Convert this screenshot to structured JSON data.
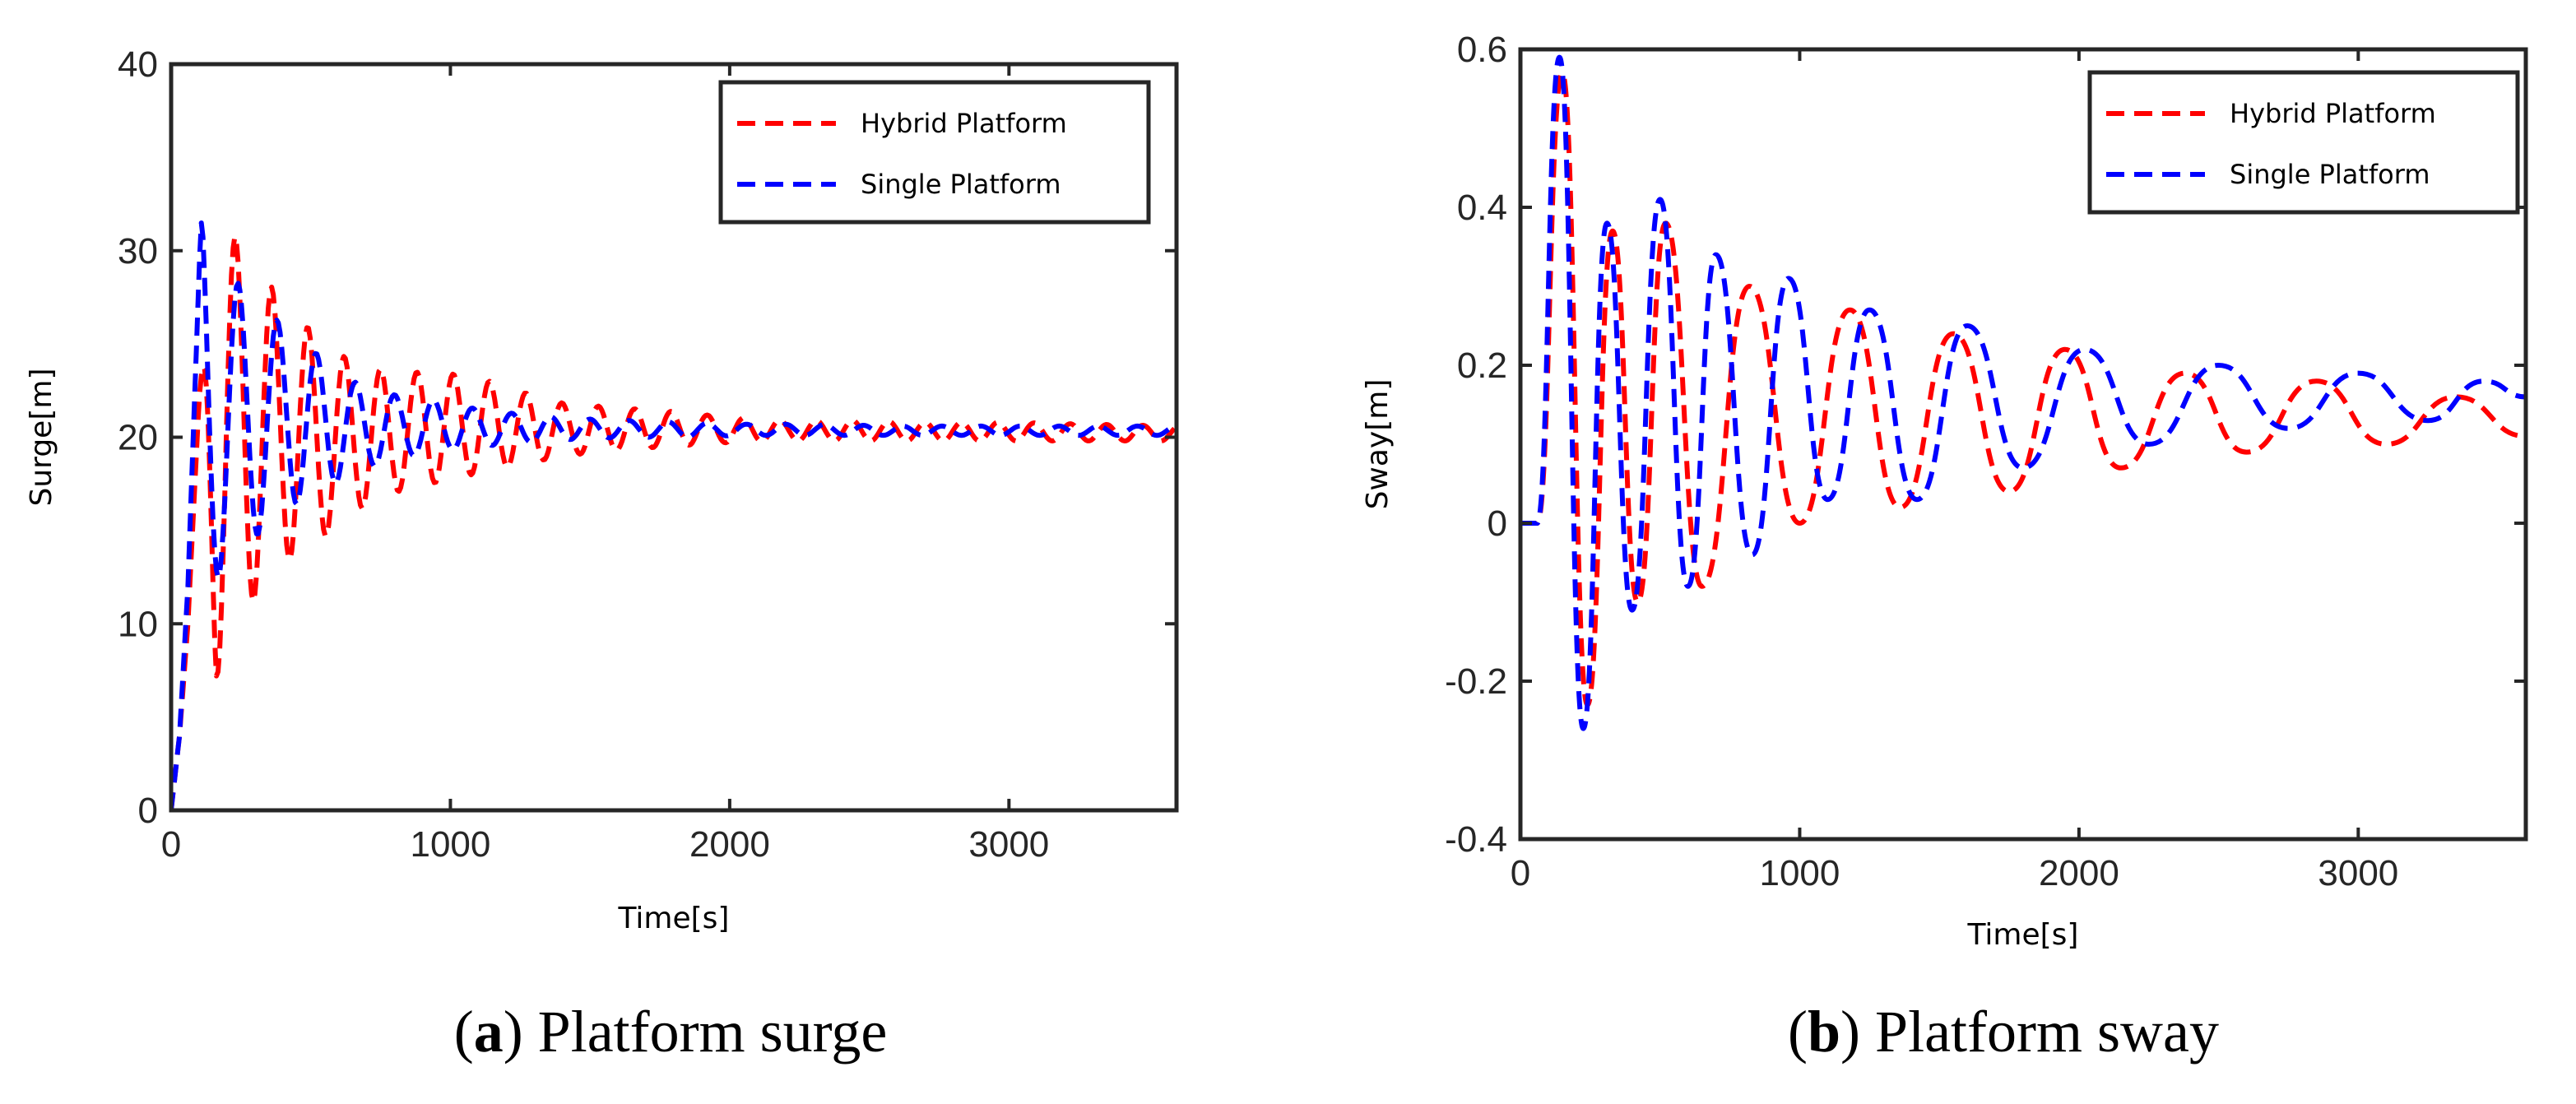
{
  "chart_data": [
    {
      "type": "line",
      "caption": {
        "letter": "a",
        "text": "Platform surge"
      },
      "xlabel": "Time[s]",
      "ylabel": "Surge[m]",
      "xlim": [
        0,
        3600
      ],
      "ylim": [
        0,
        40
      ],
      "xticks": [
        0,
        1000,
        2000,
        3000
      ],
      "yticks": [
        0,
        10,
        20,
        30,
        40
      ],
      "grid": false,
      "legend": "top-right",
      "series": [
        {
          "name": "Hybrid Platform",
          "color": "#ff0000",
          "x": [
            0,
            30,
            60,
            100,
            160,
            240,
            330,
            430,
            540,
            660,
            790,
            930,
            1080,
            1240,
            1410,
            1590,
            1780,
            1980,
            2200,
            2450,
            2700,
            3000,
            3300,
            3600
          ],
          "y": [
            0,
            4,
            10,
            22,
            32.5,
            30.5,
            28.5,
            27,
            25,
            24,
            23.5,
            23.5,
            23.3,
            22.5,
            21.8,
            21.6,
            21.4,
            21.1,
            20.9,
            20.9,
            20.8,
            20.8,
            20.7,
            20.6
          ],
          "y_low": [
            0,
            4,
            10,
            22,
            7,
            10,
            12,
            13.5,
            14.5,
            16,
            17,
            17.5,
            18,
            18.5,
            19,
            19.3,
            19.5,
            19.7,
            19.8,
            19.8,
            19.8,
            19.8,
            19.8,
            19.8
          ],
          "period": 130
        },
        {
          "name": "Single Platform",
          "color": "#0000ff",
          "x": [
            0,
            30,
            60,
            110,
            190,
            290,
            400,
            520,
            650,
            790,
            940,
            1100,
            1270,
            1450,
            1640,
            1840,
            2050,
            2300,
            2600,
            3000,
            3300,
            3600
          ],
          "y": [
            0,
            4,
            12,
            33,
            29,
            27.5,
            26,
            24.5,
            23,
            22.3,
            22,
            21.5,
            21.2,
            21,
            20.9,
            20.8,
            20.7,
            20.7,
            20.6,
            20.6,
            20.6,
            20.6
          ],
          "y_low": [
            0,
            4,
            12,
            11,
            13,
            14.5,
            16,
            17,
            18,
            18.8,
            19.2,
            19.5,
            19.7,
            19.9,
            20,
            20,
            20.1,
            20.1,
            20.1,
            20.1,
            20.1,
            20.1
          ],
          "period": 140
        }
      ]
    },
    {
      "type": "line",
      "caption": {
        "letter": "b",
        "text": "Platform sway"
      },
      "xlabel": "Time[s]",
      "ylabel": "Sway[m]",
      "xlim": [
        0,
        3600
      ],
      "ylim": [
        -0.4,
        0.6
      ],
      "xticks": [
        0,
        1000,
        2000,
        3000
      ],
      "yticks": [
        -0.4,
        -0.2,
        0,
        0.2,
        0.4,
        0.6
      ],
      "grid": false,
      "legend": "top-right",
      "series": [
        {
          "name": "Hybrid Platform",
          "color": "#ff0000",
          "x": [
            0,
            60,
            150,
            240,
            330,
            420,
            520,
            650,
            820,
            1000,
            1180,
            1360,
            1550,
            1750,
            1950,
            2150,
            2380,
            2600,
            2850,
            3100,
            3350,
            3600
          ],
          "y": [
            0,
            0,
            0.57,
            -0.23,
            0.37,
            -0.1,
            0.38,
            -0.08,
            0.3,
            0,
            0.27,
            0.02,
            0.24,
            0.04,
            0.22,
            0.07,
            0.19,
            0.09,
            0.18,
            0.1,
            0.16,
            0.11
          ]
        },
        {
          "name": "Single Platform",
          "color": "#0000ff",
          "x": [
            0,
            60,
            140,
            225,
            310,
            400,
            500,
            600,
            700,
            830,
            960,
            1100,
            1250,
            1420,
            1600,
            1800,
            2020,
            2250,
            2500,
            2750,
            3000,
            3250,
            3450,
            3600
          ],
          "y": [
            0,
            0,
            0.59,
            -0.26,
            0.38,
            -0.11,
            0.41,
            -0.08,
            0.34,
            -0.04,
            0.31,
            0.03,
            0.27,
            0.03,
            0.25,
            0.07,
            0.22,
            0.1,
            0.2,
            0.12,
            0.19,
            0.13,
            0.18,
            0.16
          ]
        }
      ]
    }
  ]
}
